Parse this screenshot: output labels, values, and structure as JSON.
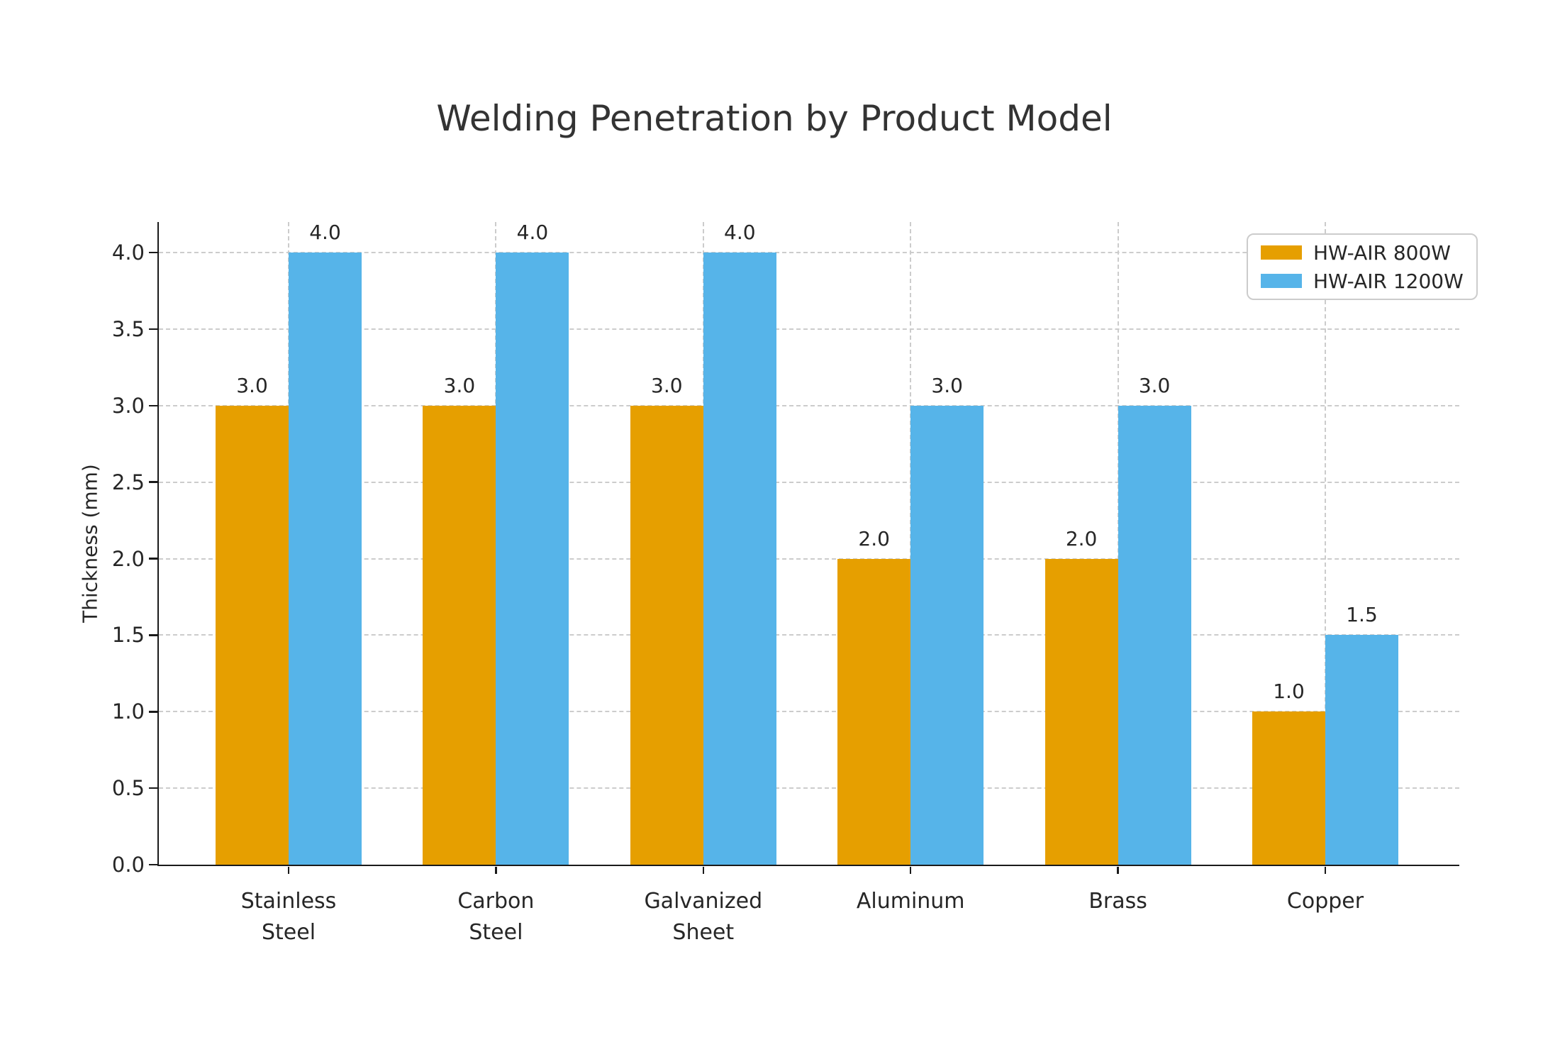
{
  "chart_data": {
    "type": "bar",
    "title": "Welding Penetration by Product Model",
    "xlabel": "",
    "ylabel": "Thickness (mm)",
    "categories": [
      "Stainless Steel",
      "Carbon Steel",
      "Galvanized Sheet",
      "Aluminum",
      "Brass",
      "Copper"
    ],
    "category_lines": [
      [
        "Stainless",
        "Steel"
      ],
      [
        "Carbon",
        "Steel"
      ],
      [
        "Galvanized",
        "Sheet"
      ],
      [
        "Aluminum"
      ],
      [
        "Brass"
      ],
      [
        "Copper"
      ]
    ],
    "series": [
      {
        "name": "HW-AIR 800W",
        "color": "#E69F00",
        "values": [
          3.0,
          3.0,
          3.0,
          2.0,
          2.0,
          1.0
        ]
      },
      {
        "name": "HW-AIR 1200W",
        "color": "#56B4E9",
        "values": [
          4.0,
          4.0,
          4.0,
          3.0,
          3.0,
          1.5
        ]
      }
    ],
    "bar_value_labels": [
      [
        "3.0",
        "3.0",
        "3.0",
        "2.0",
        "2.0",
        "1.0"
      ],
      [
        "4.0",
        "4.0",
        "4.0",
        "3.0",
        "3.0",
        "1.5"
      ]
    ],
    "yticks": [
      0.0,
      0.5,
      1.0,
      1.5,
      2.0,
      2.5,
      3.0,
      3.5,
      4.0
    ],
    "ylim": [
      0,
      4.2
    ],
    "grid": {
      "horizontal": true,
      "vertical": true,
      "line_style": "dashed",
      "color": "#cccccc"
    },
    "legend": {
      "position": "upper right",
      "labels": [
        "HW-AIR 800W",
        "HW-AIR 1200W"
      ]
    }
  }
}
